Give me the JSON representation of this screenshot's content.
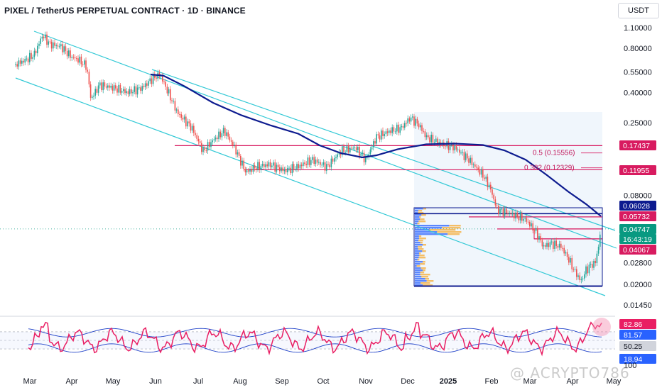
{
  "header": {
    "title": "PIXEL / TetherUS PERPETUAL CONTRACT · 1D · BINANCE",
    "currency": "USDT"
  },
  "watermark": "@ ACRYPTO786",
  "colors": {
    "candle_up": "#26a69a",
    "candle_down": "#ef5350",
    "channel": "#33c9d6",
    "moving_average": "#0d1b8f",
    "resistance": "#d81b60",
    "rsi": "#e91e63",
    "rsi_bands": "#1e40c8",
    "volume_profile_up": "#2962ff",
    "volume_profile_down": "#f5b041"
  },
  "chart_data": {
    "type": "candlestick",
    "y_scale": "log",
    "x_tick_labels": [
      "Mar",
      "Apr",
      "May",
      "Jun",
      "Jul",
      "Aug",
      "Sep",
      "Oct",
      "Nov",
      "Dec",
      "2025",
      "Feb",
      "Mar",
      "Apr",
      "May"
    ],
    "y_tick_labels": [
      "1.10000",
      "0.80000",
      "0.55000",
      "0.40000",
      "0.25000",
      "0.08000",
      "0.02800",
      "0.02000",
      "0.01450"
    ],
    "y_tick_values": [
      1.1,
      0.8,
      0.55,
      0.4,
      0.25,
      0.08,
      0.028,
      0.02,
      0.0145
    ],
    "price_tags": [
      {
        "label": "0.17437",
        "value": 0.17437,
        "color": "#d81b60"
      },
      {
        "label": "0.11955",
        "value": 0.11955,
        "color": "#d81b60"
      },
      {
        "label": "0.06028",
        "value": 0.06028,
        "color": "#0d1b8f"
      },
      {
        "label": "0.05732",
        "value": 0.05732,
        "color": "#d81b60"
      },
      {
        "label": "0.04747",
        "value": 0.04747,
        "color": "#089981"
      },
      {
        "label": "16:43:19",
        "value": 0.0432,
        "color": "#089981"
      },
      {
        "label": "0.04067",
        "value": 0.04067,
        "color": "#d81b60"
      }
    ],
    "fib_levels": [
      {
        "label": "0.5 (0.15556)",
        "value": 0.15556
      },
      {
        "label": "0.382 (0.12329)",
        "value": 0.12329
      }
    ],
    "horizontal_levels": [
      0.17437,
      0.11955,
      0.06028,
      0.05732,
      0.04747,
      0.04067,
      0.0194
    ],
    "candles_approx": [
      {
        "x": "late Feb",
        "open": 0.62,
        "close": 0.68
      },
      {
        "x": "Mar",
        "high": 1.08,
        "close": 0.85
      },
      {
        "x": "Apr",
        "close": 0.62
      },
      {
        "x": "Apr",
        "low": 0.3,
        "close": 0.45
      },
      {
        "x": "May",
        "close": 0.42
      },
      {
        "x": "Jun",
        "high": 0.56,
        "close": 0.52
      },
      {
        "x": "Jul",
        "low": 0.16,
        "close": 0.19
      },
      {
        "x": "Aug",
        "low": 0.1,
        "close": 0.13
      },
      {
        "x": "Sep",
        "close": 0.13
      },
      {
        "x": "Oct",
        "close": 0.14
      },
      {
        "x": "Nov",
        "close": 0.19
      },
      {
        "x": "Dec",
        "high": 0.29,
        "close": 0.24
      },
      {
        "x": "2025",
        "close": 0.16
      },
      {
        "x": "Feb",
        "close": 0.065
      },
      {
        "x": "Mar",
        "close": 0.032
      },
      {
        "x": "Apr",
        "low": 0.0194,
        "close": 0.022
      },
      {
        "x": "Apr",
        "close": 0.04747
      }
    ],
    "moving_average_approx": [
      0.53,
      0.48,
      0.35,
      0.25,
      0.17,
      0.13,
      0.125,
      0.145,
      0.17,
      0.17,
      0.14,
      0.09,
      0.058
    ],
    "rsi_panel": {
      "tick_labels": [
        "82.86",
        "81.57",
        "50.25",
        "18.94"
      ],
      "tick_values": [
        82.86,
        81.57,
        50.25,
        18.94
      ],
      "tag_colors": [
        "#e91e63",
        "#2962ff",
        "#d1d4dc",
        "#2962ff"
      ],
      "cut_label": "100"
    }
  }
}
